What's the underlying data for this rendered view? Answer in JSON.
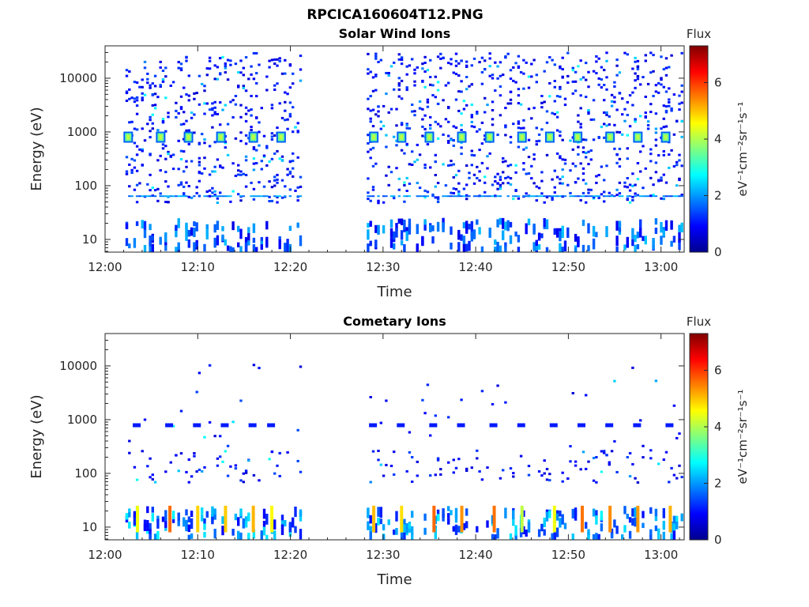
{
  "figure_title": "RPCICA160604T12.PNG",
  "chart_data": [
    {
      "type": "heatmap",
      "title": "Solar Wind Ions",
      "xlabel": "Time",
      "ylabel": "Energy (eV)",
      "x_ticks": [
        "12:00",
        "12:10",
        "12:20",
        "12:30",
        "12:40",
        "12:50",
        "13:00"
      ],
      "y_ticks": [
        "10",
        "100",
        "1000",
        "10000"
      ],
      "y_scale": "log",
      "colorbar": {
        "title": "Flux",
        "label": "eV⁻¹cm⁻²sr⁻¹s⁻¹",
        "ticks": [
          "0",
          "2",
          "4",
          "6"
        ],
        "range": [
          0,
          7.3
        ]
      },
      "data_gap": [
        "12:21",
        "12:28"
      ],
      "features": [
        {
          "name": "solar wind proton peaks",
          "energy_eV": 800,
          "times": [
            "12:02.5",
            "12:06",
            "12:09",
            "12:12.5",
            "12:16",
            "12:19",
            "12:29",
            "12:32",
            "12:35",
            "12:38.5",
            "12:41.5",
            "12:45",
            "12:48",
            "12:51",
            "12:54.5",
            "12:57.5",
            "13:00.5"
          ],
          "flux": 3.5
        }
      ]
    },
    {
      "type": "heatmap",
      "title": "Cometary Ions",
      "xlabel": "Time",
      "ylabel": "Energy (eV)",
      "x_ticks": [
        "12:00",
        "12:10",
        "12:20",
        "12:30",
        "12:40",
        "12:50",
        "13:00"
      ],
      "y_ticks": [
        "10",
        "100",
        "1000",
        "10000"
      ],
      "y_scale": "log",
      "colorbar": {
        "title": "Flux",
        "label": "eV⁻¹cm⁻²sr⁻¹s⁻¹",
        "ticks": [
          "0",
          "2",
          "4",
          "6"
        ],
        "range": [
          0,
          7.3
        ]
      },
      "data_gap": [
        "12:21",
        "12:28"
      ],
      "features": [
        {
          "name": "low-energy cometary bursts",
          "energy_eV": 15,
          "times": [
            "12:03.5",
            "12:07",
            "12:10",
            "12:13",
            "12:16",
            "12:18",
            "12:29",
            "12:32",
            "12:35.5",
            "12:38.5",
            "12:42",
            "12:45",
            "12:48.5",
            "12:51.5",
            "12:54.5",
            "12:57.5",
            "13:01"
          ],
          "flux": 5.0
        }
      ]
    }
  ]
}
